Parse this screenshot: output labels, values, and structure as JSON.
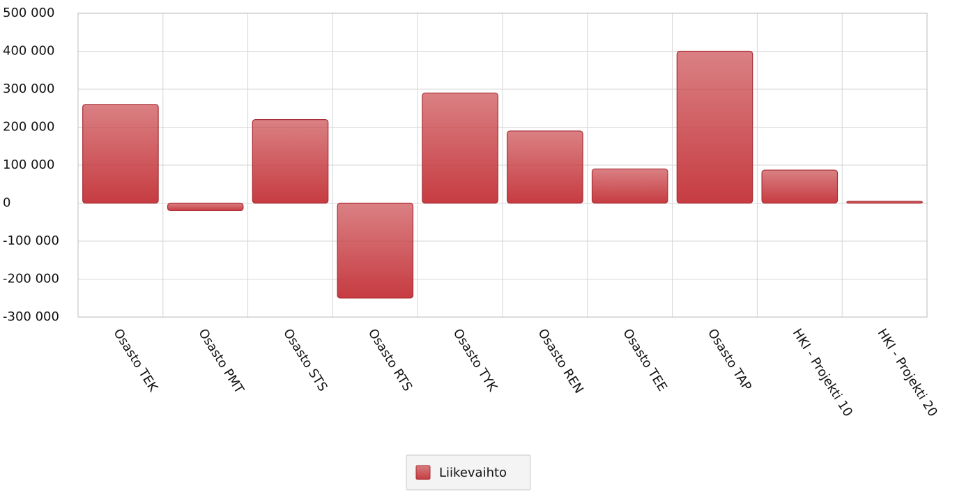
{
  "chart_data": {
    "type": "bar",
    "categories": [
      "Osasto TEK",
      "Osasto PMT",
      "Osasto STS",
      "Osasto RTS",
      "Osasto TYK",
      "Osasto REN",
      "Osasto TEE",
      "Osasto TAP",
      "HKI - Projekti 10",
      "HKI - Projekti 20"
    ],
    "series": [
      {
        "name": "Liikevaihto",
        "color": "#c63c41",
        "values": [
          260000,
          -20000,
          220000,
          -250000,
          290000,
          190000,
          90000,
          400000,
          87000,
          5000
        ]
      }
    ],
    "ylim": [
      -300000,
      500000
    ],
    "yticks": [
      {
        "value": -300000,
        "label": "-300 000"
      },
      {
        "value": -200000,
        "label": "-200 000"
      },
      {
        "value": -100000,
        "label": "-100 000"
      },
      0,
      {
        "value": 100000,
        "label": "100 000"
      },
      {
        "value": 200000,
        "label": "200 000"
      },
      {
        "value": 300000,
        "label": "300 000"
      },
      {
        "value": 400000,
        "label": "400 000"
      },
      {
        "value": 500000,
        "label": "500 000"
      }
    ],
    "grid": true,
    "legend": "bottom"
  }
}
